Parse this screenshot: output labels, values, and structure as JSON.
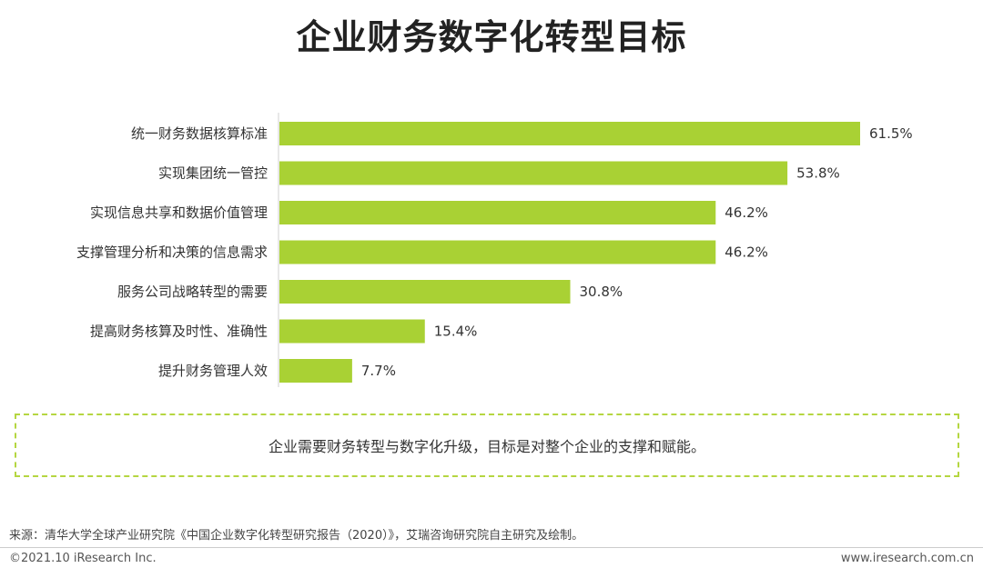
{
  "header": {
    "title": "企业财务数字化转型目标"
  },
  "chart_data": {
    "type": "bar",
    "orientation": "horizontal",
    "categories": [
      "统一财务数据核算标准",
      "实现集团统一管控",
      "实现信息共享和数据价值管理",
      "支撑管理分析和决策的信息需求",
      "服务公司战略转型的需要",
      "提高财务核算及时性、准确性",
      "提升财务管理人效"
    ],
    "values": [
      61.5,
      53.8,
      46.2,
      46.2,
      30.8,
      15.4,
      7.7
    ],
    "value_labels": [
      "61.5%",
      "53.8%",
      "46.2%",
      "46.2%",
      "30.8%",
      "15.4%",
      "7.7%"
    ],
    "unit": "%",
    "xlim": [
      0,
      61.5
    ],
    "bar_color": "#a9d134",
    "grid": false,
    "legend": "none"
  },
  "note": {
    "text": "企业需要财务转型与数字化升级，目标是对整个企业的支撑和赋能。"
  },
  "source": {
    "text": "来源：清华大学全球产业研究院《中国企业数字化转型研究报告（2020）》，艾瑞咨询研究院自主研究及绘制。"
  },
  "footer": {
    "copyright": "©2021.10 iResearch Inc.",
    "website": "www.iresearch.com.cn"
  },
  "colors": {
    "accent": "#a9d134",
    "note_border": "#b5d641"
  }
}
